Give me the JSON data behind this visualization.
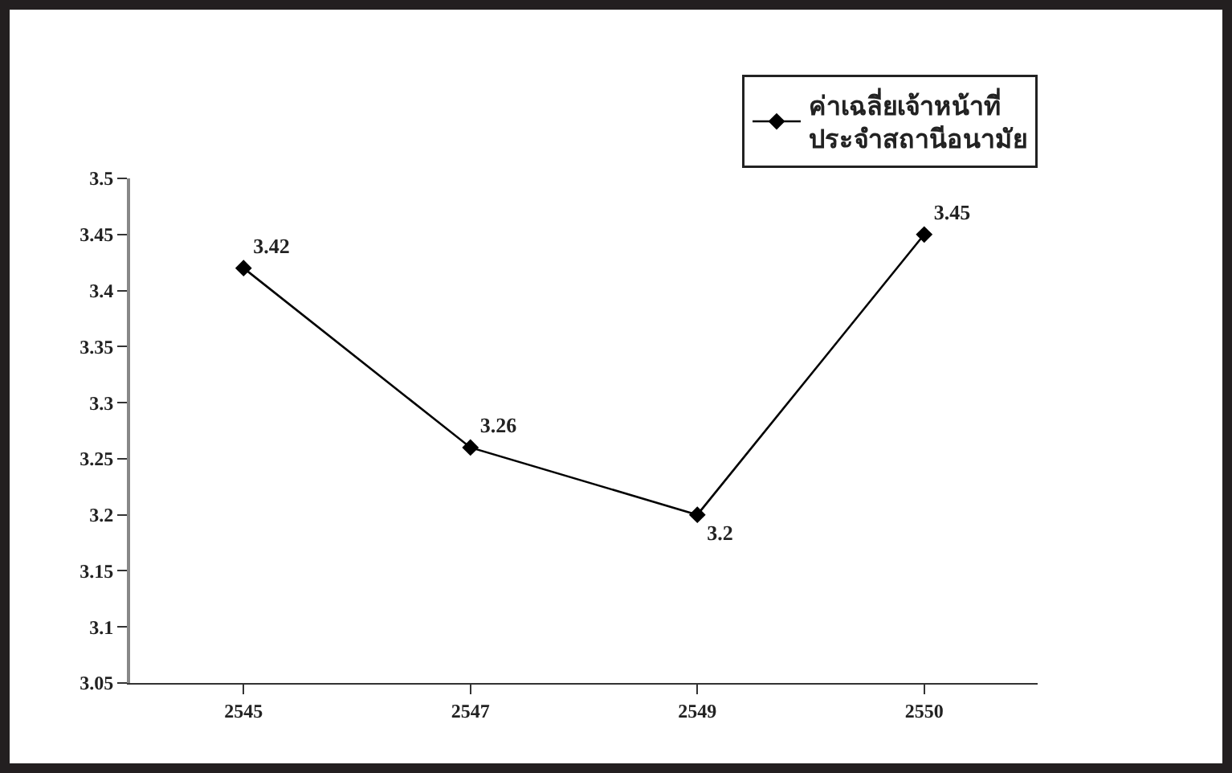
{
  "chart_data": {
    "type": "line",
    "categories": [
      "2545",
      "2547",
      "2549",
      "2550"
    ],
    "series": [
      {
        "name": "ค่าเฉลี่ยเจ้าหน้าที่\nประจำสถานีอนามัย",
        "color": "#000000",
        "values": [
          3.42,
          3.26,
          3.2,
          3.45
        ]
      }
    ],
    "ylim": [
      3.05,
      3.5
    ],
    "yticks": [
      3.05,
      3.1,
      3.15,
      3.2,
      3.25,
      3.3,
      3.35,
      3.4,
      3.45,
      3.5
    ],
    "grid": false,
    "legend": "top right",
    "marker": "diamond",
    "line_style": "solid",
    "data_labels": true
  }
}
